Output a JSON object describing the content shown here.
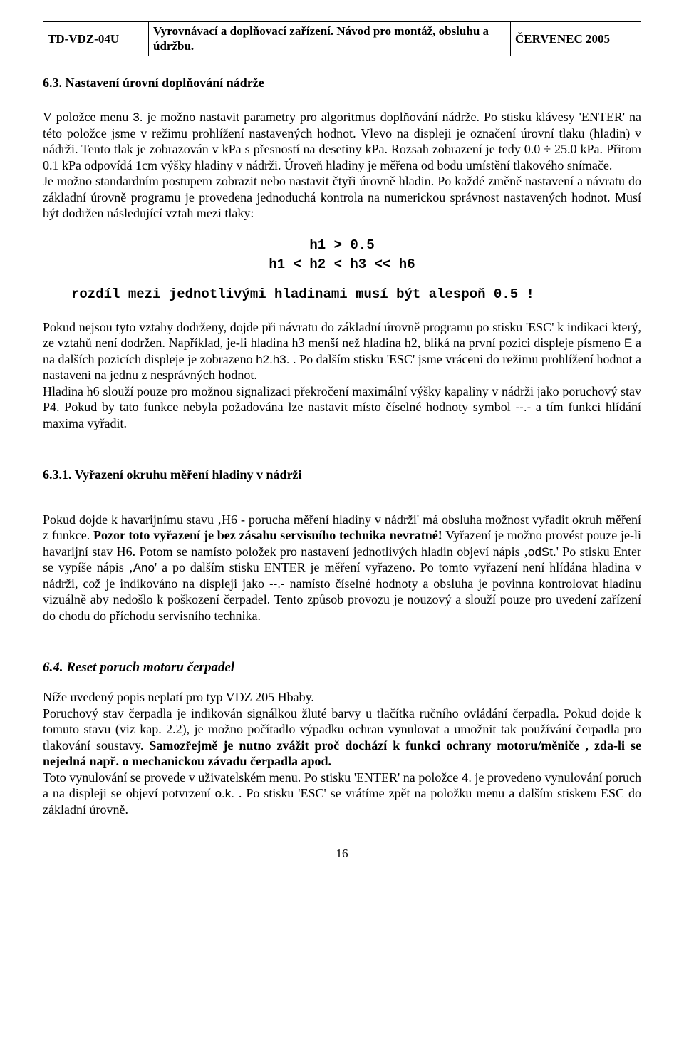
{
  "header": {
    "doc_code": "TD-VDZ-04U",
    "doc_title": "Vyrovnávací a doplňovací zařízení. Návod pro montáž, obsluhu a údržbu.",
    "doc_date": "ČERVENEC  2005"
  },
  "section_6_3": {
    "title": "6.3. Nastavení úrovní doplňování nádrže",
    "p1_a": "V položce menu ",
    "p1_menuitem": "3.",
    "p1_b": " je možno nastavit parametry pro algoritmus doplňování nádrže. Po stisku klávesy 'ENTER' na této položce jsme v režimu prohlížení nastavených hodnot. Vlevo na  displeji je označení úrovní tlaku (hladin) v nádrži. Tento tlak je zobrazován v kPa s přesností na desetiny kPa. Rozsah zobrazení je tedy 0.0 ÷ 25.0 kPa. Přitom 0.1 kPa odpovídá 1cm výšky hladiny v nádrži. Úroveň hladiny je měřena od bodu umístění tlakového snímače.",
    "p2": "Je možno standardním postupem zobrazit nebo nastavit čtyři úrovně hladin. Po každé změně nastavení a návratu do základní úrovně programu je provedena jednoduchá kontrola na numerickou správnost nastavených hodnot. Musí být dodržen následující vztah mezi tlaky:",
    "formula1": "h1 > 0.5",
    "formula2": "h1 < h2 < h3 << h6",
    "rule_line": "rozdíl mezi jednotlivými hladinami musí být alespoň 0.5 !",
    "p3_a": "Pokud nejsou tyto vztahy dodrženy, dojde při návratu do základní úrovně programu po stisku 'ESC' k indikaci který, ze vztahů není dodržen. Například, je-li hladina h3 menší než hladina h2, bliká na první pozici displeje písmeno ",
    "p3_E": "E",
    "p3_b": " a na dalších pozicích displeje je zobrazeno  ",
    "p3_h2h3": "h2.h3.",
    "p3_c": " . Po dalším stisku 'ESC' jsme vráceni do režimu prohlížení hodnot a nastaveni na jednu z nesprávných hodnot.",
    "p4_a": "Hladina h6 slouží pouze pro možnou signalizaci překročení maximální výšky kapaliny v nádrži jako poruchový stav P4. Pokud by tato funkce nebyla požadována lze nastavit místo číselné hodnoty symbol ",
    "p4_sym": "--.-",
    "p4_b": " a tím funkci hlídání maxima vyřadit."
  },
  "section_6_3_1": {
    "title": "6.3.1. Vyřazení okruhu měření hladiny v nádrži",
    "p1_a": "Pokud dojde k havarijnímu stavu ‚H6 - porucha měření hladiny v nádrži' má obsluha možnost vyřadit okruh měření z funkce. ",
    "p1_warn": "Pozor toto vyřazení je bez zásahu servisního technika nevratné!",
    "p1_b": " Vyřazení je možno provést pouze je-li havarijní stav H6. Potom se namísto položek pro nastavení jednotlivých hladin objeví nápis ‚",
    "p1_odSt": "odSt.",
    "p1_c": "' Po stisku Enter se vypíše nápis ‚",
    "p1_Ano": "Ano",
    "p1_d": "' a po dalším stisku ENTER je měření vyřazeno. Po tomto vyřazení není hlídána hladina v nádrži, což je indikováno na displeji jako ",
    "p1_sym": "--.-",
    "p1_e": " namísto číselné hodnoty a obsluha je povinna kontrolovat hladinu vizuálně aby nedošlo k poškození čerpadel. Tento způsob provozu je nouzový a slouží pouze pro uvedení zařízení do chodu do příchodu servisního technika."
  },
  "section_6_4": {
    "title": "6.4. Reset poruch motoru čerpadel",
    "p1": "Níže uvedený popis neplatí pro typ VDZ 205 Hbaby.",
    "p2_a": "Poruchový stav čerpadla je indikován signálkou žluté barvy u tlačítka ručního ovládání čerpadla. Pokud dojde k tomuto stavu (viz kap. 2.2), je možno počítadlo výpadku ochran vynulovat a umožnit tak používání čerpadla pro tlakování soustavy. ",
    "p2_b": "Samozřejmě je nutno zvážit proč dochází k funkci ochrany motoru/měniče , zda-li se nejedná např. o mechanickou závadu čerpadla apod.",
    "p3_a": "Toto vynulování se provede v uživatelském menu. Po stisku 'ENTER' na položce ",
    "p3_item": "4.",
    "p3_b": " je provedeno vynulování poruch a na displeji se objeví potvrzení ",
    "p3_ok": "o.k.",
    "p3_c": " . Po stisku 'ESC' se vrátíme zpět na položku menu a dalším stiskem ESC do základní úrovně."
  },
  "page_number": "16"
}
